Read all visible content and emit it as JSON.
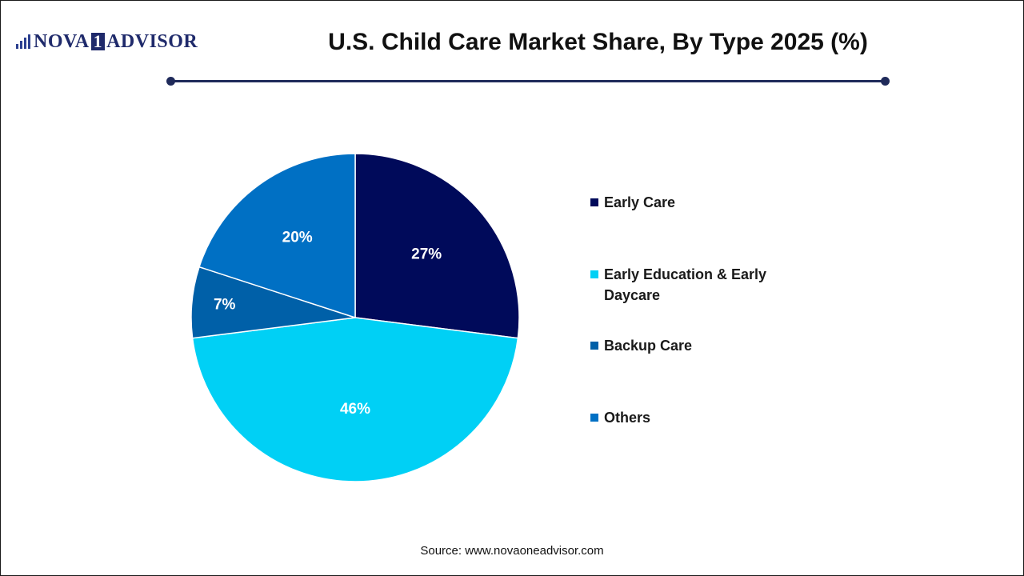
{
  "brand": {
    "name_left": "NOVA",
    "name_one": "1",
    "name_right": "ADVISOR"
  },
  "colors": {
    "early_care": "#000a5a",
    "early_education": "#00d0f5",
    "backup_care": "#0060a8",
    "others": "#0070c4",
    "rule": "#1f2a5a"
  },
  "source": "Source: www.novaoneadvisor.com",
  "chart_data": {
    "type": "pie",
    "title": "U.S. Child Care Market Share, By Type 2025 (%)",
    "legend_position": "right",
    "slices": [
      {
        "label": "Early Care",
        "value": 27,
        "value_label": "27%",
        "color": "#000a5a"
      },
      {
        "label": "Early Education & Early Daycare",
        "value": 46,
        "value_label": "46%",
        "color": "#00d0f5"
      },
      {
        "label": "Backup Care",
        "value": 7,
        "value_label": "7%",
        "color": "#0060a8"
      },
      {
        "label": "Others",
        "value": 20,
        "value_label": "20%",
        "color": "#0070c4"
      }
    ]
  }
}
